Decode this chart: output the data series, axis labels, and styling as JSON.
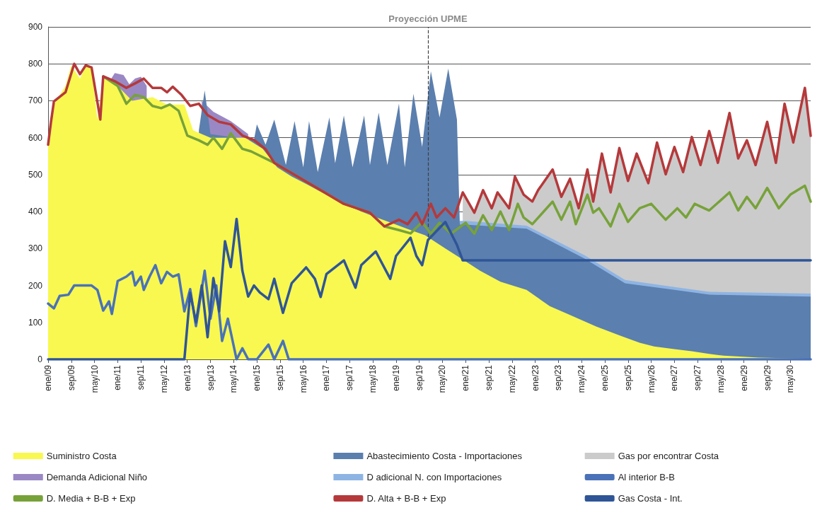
{
  "chart_data": {
    "type": "area",
    "xlim": [
      "2009-01",
      "2030-12"
    ],
    "xticks": [
      {
        "value": "2009-01",
        "label": "ene/09"
      },
      {
        "value": "2009-09",
        "label": "sep/09"
      },
      {
        "value": "2010-05",
        "label": "may/10"
      },
      {
        "value": "2011-01",
        "label": "ene/11"
      },
      {
        "value": "2011-09",
        "label": "sep/11"
      },
      {
        "value": "2012-05",
        "label": "may/12"
      },
      {
        "value": "2013-01",
        "label": "ene/13"
      },
      {
        "value": "2013-09",
        "label": "sep/13"
      },
      {
        "value": "2014-05",
        "label": "may/14"
      },
      {
        "value": "2015-01",
        "label": "ene/15"
      },
      {
        "value": "2015-09",
        "label": "sep/15"
      },
      {
        "value": "2016-05",
        "label": "may/16"
      },
      {
        "value": "2017-01",
        "label": "ene/17"
      },
      {
        "value": "2017-09",
        "label": "sep/17"
      },
      {
        "value": "2018-05",
        "label": "may/18"
      },
      {
        "value": "2019-01",
        "label": "ene/19"
      },
      {
        "value": "2019-09",
        "label": "sep/19"
      },
      {
        "value": "2020-05",
        "label": "may/20"
      },
      {
        "value": "2021-01",
        "label": "ene/21"
      },
      {
        "value": "2021-09",
        "label": "sep/21"
      },
      {
        "value": "2022-05",
        "label": "may/22"
      },
      {
        "value": "2023-01",
        "label": "ene/23"
      },
      {
        "value": "2023-09",
        "label": "sep/23"
      },
      {
        "value": "2024-05",
        "label": "may/24"
      },
      {
        "value": "2025-01",
        "label": "ene/25"
      },
      {
        "value": "2025-09",
        "label": "sep/25"
      },
      {
        "value": "2026-05",
        "label": "may/26"
      },
      {
        "value": "2027-01",
        "label": "ene/27"
      },
      {
        "value": "2027-09",
        "label": "sep/27"
      },
      {
        "value": "2028-05",
        "label": "may/28"
      },
      {
        "value": "2029-01",
        "label": "ene/29"
      },
      {
        "value": "2029-09",
        "label": "sep/29"
      },
      {
        "value": "2030-05",
        "label": "may/30"
      }
    ],
    "ylim": [
      0,
      900
    ],
    "yticks": [
      0,
      100,
      200,
      300,
      400,
      500,
      600,
      700,
      800,
      900
    ],
    "grid": "y",
    "legend": "bottom",
    "ref_lines": [
      {
        "axis": "x",
        "value": "2019-12",
        "label": "Proyección UPME",
        "color": "#404040",
        "line_style": "dashed"
      }
    ],
    "series": [
      {
        "name": "Suministro Costa",
        "color": "#f8f850",
        "x": [
          "2009-01",
          "2009-03",
          "2009-07",
          "2009-09",
          "2009-12",
          "2010-02",
          "2010-04",
          "2010-06",
          "2010-08",
          "2011-01",
          "2011-06",
          "2012-01",
          "2012-06",
          "2012-12",
          "2013-03",
          "2013-09",
          "2014-03",
          "2014-09",
          "2015-03",
          "2015-08",
          "2016-01",
          "2016-06",
          "2017-01",
          "2017-06",
          "2018-01",
          "2018-06",
          "2019-01",
          "2019-06",
          "2019-11",
          "2020-06",
          "2021-01",
          "2021-06",
          "2022-01",
          "2022-10",
          "2023-06",
          "2024-01",
          "2024-10",
          "2025-06",
          "2026-01",
          "2026-06",
          "2027-01",
          "2027-07",
          "2028-01",
          "2028-06",
          "2029-06",
          "2030-12"
        ],
        "values": [
          580,
          690,
          740,
          795,
          760,
          795,
          790,
          650,
          760,
          740,
          700,
          710,
          690,
          690,
          620,
          600,
          600,
          600,
          570,
          520,
          495,
          475,
          445,
          425,
          400,
          385,
          365,
          350,
          336,
          300,
          265,
          240,
          210,
          188,
          144,
          120,
          89,
          65,
          45,
          35,
          28,
          22,
          15,
          10,
          5,
          2
        ]
      },
      {
        "name": "Abastecimiento Costa - Importaciones",
        "color": "#5b7fae",
        "x": [
          "2013-05",
          "2013-07",
          "2013-09",
          "2014-06",
          "2014-12",
          "2015-01",
          "2015-04",
          "2015-07",
          "2015-11",
          "2016-02",
          "2016-05",
          "2016-07",
          "2016-10",
          "2017-02",
          "2017-04",
          "2017-07",
          "2017-10",
          "2018-02",
          "2018-04",
          "2018-07",
          "2018-10",
          "2019-02",
          "2019-04",
          "2019-07",
          "2019-10",
          "2020-01",
          "2020-04",
          "2020-07",
          "2020-10",
          "2020-11",
          "2021-01",
          "2022-10",
          "2024-06",
          "2025-08",
          "2027-01",
          "2028-01",
          "2030-12"
        ],
        "values": [
          620,
          728,
          610,
          600,
          594,
          636,
          581,
          649,
          526,
          645,
          520,
          645,
          507,
          655,
          531,
          660,
          520,
          660,
          526,
          668,
          526,
          692,
          520,
          719,
          575,
          780,
          655,
          787,
          649,
          365,
          365,
          354,
          273,
          206,
          188,
          175,
          170
        ]
      },
      {
        "name": "Gas por encontrar Costa",
        "color": "#cbcbcb",
        "x": [
          "2020-12",
          "2021-04",
          "2021-07",
          "2021-10",
          "2021-12",
          "2022-04",
          "2022-06",
          "2022-09",
          "2022-12",
          "2023-02",
          "2023-07",
          "2023-10",
          "2024-01",
          "2024-04",
          "2024-07",
          "2024-09",
          "2024-12",
          "2025-03",
          "2025-06",
          "2025-09",
          "2025-12",
          "2026-04",
          "2026-07",
          "2026-10",
          "2027-01",
          "2027-04",
          "2027-07",
          "2027-10",
          "2028-01",
          "2028-04",
          "2028-08",
          "2028-11",
          "2029-02",
          "2029-05",
          "2029-09",
          "2029-12",
          "2030-03",
          "2030-06",
          "2030-10",
          "2030-12"
        ],
        "values": [
          452,
          397,
          458,
          409,
          452,
          409,
          495,
          446,
          427,
          458,
          514,
          440,
          489,
          409,
          514,
          427,
          557,
          452,
          572,
          483,
          557,
          477,
          587,
          501,
          575,
          507,
          602,
          526,
          618,
          532,
          667,
          544,
          593,
          526,
          643,
          532,
          692,
          587,
          735,
          605
        ]
      },
      {
        "name": "Demanda Adicional Niño",
        "color": "#9a88c4",
        "x": [
          "2010-10",
          "2010-12",
          "2011-03",
          "2011-05",
          "2011-07",
          "2011-09",
          "2011-11",
          "2012-06",
          "2013-06",
          "2013-10",
          "2014-04",
          "2014-10"
        ],
        "values": [
          750,
          775,
          770,
          745,
          760,
          765,
          740,
          null,
          700,
          670,
          645,
          610
        ]
      },
      {
        "name": "D adicional N. con Importaciones",
        "color": "#8eb4e3",
        "x": [
          "2020-11",
          "2021-01",
          "2022-10",
          "2024-06",
          "2025-08",
          "2027-01",
          "2028-01",
          "2030-12"
        ],
        "values": [
          375,
          375,
          362,
          282,
          215,
          196,
          183,
          178
        ]
      },
      {
        "name": "Al interior B-B",
        "type": "line",
        "color": "#4a72b8",
        "x": [
          "2009-01",
          "2009-03",
          "2009-05",
          "2009-08",
          "2009-10",
          "2010-04",
          "2010-06",
          "2010-08",
          "2010-10",
          "2010-11",
          "2011-01",
          "2011-04",
          "2011-06",
          "2011-07",
          "2011-09",
          "2011-10",
          "2011-12",
          "2012-02",
          "2012-04",
          "2012-06",
          "2012-08",
          "2012-10",
          "2012-12",
          "2013-02",
          "2013-04",
          "2013-07",
          "2013-09",
          "2013-11",
          "2014-01",
          "2014-03",
          "2014-06",
          "2014-08",
          "2014-10",
          "2015-01",
          "2015-05",
          "2015-07",
          "2015-10",
          "2015-12",
          "2030-12"
        ],
        "values": [
          151,
          138,
          172,
          175,
          200,
          200,
          188,
          132,
          157,
          123,
          212,
          224,
          237,
          200,
          224,
          188,
          224,
          255,
          206,
          237,
          224,
          230,
          130,
          190,
          90,
          240,
          110,
          200,
          50,
          110,
          0,
          30,
          0,
          0,
          40,
          0,
          50,
          0,
          0
        ]
      },
      {
        "name": "D. Media + B-B + Exp",
        "type": "line",
        "color": "#77a23a",
        "x": [
          "2010-08",
          "2011-01",
          "2011-04",
          "2011-07",
          "2011-10",
          "2012-01",
          "2012-04",
          "2012-07",
          "2012-10",
          "2013-01",
          "2013-05",
          "2013-08",
          "2013-10",
          "2014-01",
          "2014-04",
          "2014-08",
          "2014-11",
          "2015-07",
          "2016-03",
          "2016-11",
          "2017-07",
          "2018-04",
          "2018-09",
          "2019-02",
          "2019-06",
          "2019-10",
          "2020-01",
          "2020-04",
          "2020-08",
          "2021-01",
          "2021-04",
          "2021-07",
          "2021-10",
          "2022-01",
          "2022-04",
          "2022-07",
          "2022-09",
          "2022-12",
          "2023-07",
          "2023-10",
          "2024-01",
          "2024-03",
          "2024-07",
          "2024-09",
          "2024-11",
          "2025-03",
          "2025-06",
          "2025-09",
          "2026-01",
          "2026-05",
          "2026-10",
          "2027-02",
          "2027-05",
          "2027-08",
          "2028-01",
          "2028-08",
          "2028-11",
          "2029-02",
          "2029-05",
          "2029-09",
          "2030-01",
          "2030-05",
          "2030-10",
          "2030-12"
        ],
        "values": [
          766,
          740,
          692,
          716,
          710,
          686,
          680,
          690,
          673,
          606,
          593,
          581,
          600,
          570,
          612,
          570,
          563,
          532,
          495,
          458,
          421,
          397,
          360,
          350,
          341,
          372,
          340,
          370,
          340,
          370,
          340,
          390,
          350,
          400,
          350,
          421,
          384,
          366,
          427,
          378,
          427,
          366,
          446,
          397,
          409,
          360,
          421,
          372,
          409,
          421,
          378,
          409,
          384,
          421,
          403,
          452,
          403,
          440,
          409,
          464,
          409,
          446,
          470,
          427
        ]
      },
      {
        "name": "D. Alta + B-B + Exp",
        "type": "line",
        "color": "#b5393b",
        "x": [
          "2009-01",
          "2009-02",
          "2009-03",
          "2009-07",
          "2009-10",
          "2009-12",
          "2010-02",
          "2010-04",
          "2010-07",
          "2010-08",
          "2010-12",
          "2011-04",
          "2011-07",
          "2011-10",
          "2012-01",
          "2012-04",
          "2012-06",
          "2012-08",
          "2012-11",
          "2013-02",
          "2013-05",
          "2013-08",
          "2013-12",
          "2014-04",
          "2014-08",
          "2014-12",
          "2015-04",
          "2015-07",
          "2016-03",
          "2016-11",
          "2017-07",
          "2018-04",
          "2018-09",
          "2019-02",
          "2019-05",
          "2019-08",
          "2019-10",
          "2020-01",
          "2020-03",
          "2020-06",
          "2020-09",
          "2020-12",
          "2021-04",
          "2021-07",
          "2021-10",
          "2021-12",
          "2022-04",
          "2022-06",
          "2022-09",
          "2022-12",
          "2023-02",
          "2023-07",
          "2023-10",
          "2024-01",
          "2024-04",
          "2024-07",
          "2024-09",
          "2024-12",
          "2025-03",
          "2025-06",
          "2025-09",
          "2025-12",
          "2026-04",
          "2026-07",
          "2026-10",
          "2027-01",
          "2027-04",
          "2027-07",
          "2027-10",
          "2028-01",
          "2028-04",
          "2028-08",
          "2028-11",
          "2029-02",
          "2029-05",
          "2029-09",
          "2029-12",
          "2030-03",
          "2030-06",
          "2030-10",
          "2030-12"
        ],
        "values": [
          581,
          643,
          698,
          723,
          800,
          772,
          796,
          790,
          649,
          766,
          753,
          735,
          747,
          760,
          735,
          735,
          723,
          738,
          716,
          686,
          692,
          661,
          643,
          636,
          606,
          594,
          569,
          532,
          495,
          458,
          421,
          397,
          360,
          378,
          366,
          397,
          366,
          421,
          384,
          409,
          384,
          452,
          397,
          458,
          409,
          452,
          409,
          495,
          446,
          427,
          458,
          514,
          440,
          489,
          409,
          514,
          427,
          557,
          452,
          572,
          483,
          557,
          477,
          587,
          501,
          575,
          507,
          602,
          526,
          618,
          532,
          667,
          544,
          593,
          526,
          643,
          532,
          692,
          587,
          735,
          605
        ]
      },
      {
        "name": "Gas Costa - Int.",
        "type": "line",
        "color": "#2f5597",
        "x": [
          "2009-01",
          "2012-12",
          "2013-02",
          "2013-04",
          "2013-06",
          "2013-08",
          "2013-10",
          "2013-12",
          "2014-02",
          "2014-04",
          "2014-06",
          "2014-08",
          "2014-10",
          "2014-12",
          "2015-02",
          "2015-05",
          "2015-07",
          "2015-10",
          "2016-01",
          "2016-06",
          "2016-09",
          "2016-11",
          "2017-01",
          "2017-07",
          "2017-11",
          "2018-01",
          "2018-06",
          "2018-11",
          "2019-01",
          "2019-06",
          "2019-08",
          "2019-10",
          "2019-12",
          "2020-06",
          "2020-10",
          "2020-12",
          "2030-12"
        ],
        "values": [
          0,
          0,
          180,
          100,
          200,
          60,
          220,
          130,
          320,
          250,
          380,
          240,
          170,
          200,
          181,
          163,
          218,
          126,
          206,
          249,
          218,
          169,
          231,
          268,
          194,
          255,
          292,
          218,
          280,
          329,
          280,
          255,
          323,
          372,
          310,
          268,
          268
        ]
      }
    ]
  }
}
